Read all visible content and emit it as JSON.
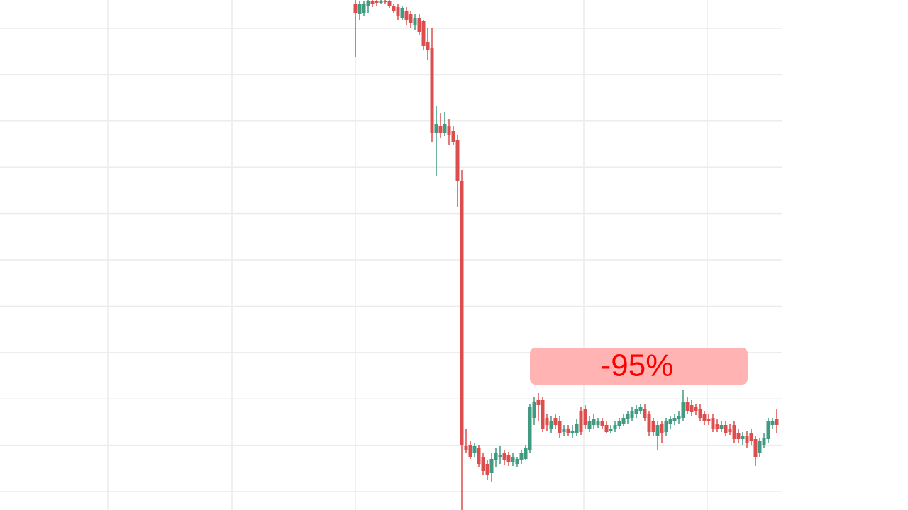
{
  "chart_data": {
    "type": "candlestick",
    "annotation": "-95%",
    "annotation_color": "#ff0000",
    "annotation_background": "#ffb3b3",
    "up_color": "#3f9a80",
    "down_color": "#dd4d4d",
    "ylim": [
      0,
      720
    ],
    "open": [
      715,
      700,
      702,
      712,
      718,
      718,
      716,
      719,
      718,
      712,
      710,
      695,
      705,
      700,
      685,
      695,
      690,
      660,
      652,
      532,
      542,
      532,
      542,
      535,
      522,
      465,
      90,
      92,
      80,
      88,
      75,
      65,
      52,
      70,
      75,
      80,
      78,
      68,
      65,
      70,
      72,
      85,
      130,
      155,
      155,
      130,
      115,
      130,
      125,
      110,
      115,
      108,
      108,
      140,
      142,
      115,
      120,
      120,
      125,
      120,
      112,
      115,
      118,
      122,
      128,
      130,
      135,
      140,
      142,
      135,
      125,
      105,
      122,
      110,
      122,
      125,
      128,
      130,
      152,
      148,
      145,
      142,
      135,
      128,
      130,
      122,
      115,
      120,
      115,
      120,
      108,
      100,
      105,
      108,
      100,
      80,
      92,
      100,
      120,
      128
    ],
    "high": [
      720,
      718,
      718,
      720,
      720,
      720,
      720,
      720,
      720,
      715,
      715,
      712,
      710,
      705,
      700,
      700,
      692,
      680,
      680,
      570,
      560,
      562,
      552,
      542,
      530,
      480,
      115,
      98,
      95,
      92,
      80,
      70,
      80,
      88,
      90,
      85,
      82,
      80,
      75,
      85,
      92,
      150,
      160,
      165,
      160,
      135,
      132,
      135,
      132,
      120,
      120,
      120,
      128,
      145,
      148,
      132,
      135,
      130,
      130,
      125,
      120,
      125,
      130,
      135,
      140,
      145,
      148,
      150,
      150,
      140,
      130,
      125,
      125,
      130,
      132,
      135,
      140,
      170,
      160,
      155,
      150,
      150,
      140,
      135,
      135,
      128,
      125,
      125,
      122,
      125,
      115,
      110,
      112,
      115,
      105,
      102,
      108,
      130,
      130,
      142
    ],
    "low": [
      640,
      692,
      698,
      702,
      710,
      712,
      714,
      715,
      708,
      702,
      692,
      692,
      685,
      680,
      678,
      670,
      650,
      635,
      520,
      472,
      525,
      528,
      515,
      515,
      428,
      0,
      80,
      72,
      75,
      60,
      50,
      42,
      40,
      60,
      65,
      64,
      62,
      62,
      60,
      65,
      70,
      80,
      120,
      125,
      110,
      112,
      108,
      115,
      102,
      105,
      104,
      102,
      104,
      106,
      115,
      110,
      115,
      116,
      114,
      108,
      108,
      110,
      114,
      118,
      122,
      125,
      130,
      135,
      125,
      105,
      105,
      85,
      95,
      105,
      115,
      120,
      122,
      125,
      135,
      132,
      134,
      125,
      120,
      120,
      110,
      110,
      110,
      105,
      106,
      95,
      95,
      92,
      88,
      92,
      62,
      75,
      88,
      95,
      115,
      108
    ],
    "close": [
      702,
      715,
      715,
      718,
      714,
      716,
      719,
      717,
      712,
      705,
      698,
      708,
      692,
      688,
      695,
      675,
      655,
      650,
      532,
      545,
      532,
      545,
      530,
      520,
      465,
      92,
      85,
      75,
      90,
      65,
      55,
      50,
      72,
      80,
      78,
      70,
      68,
      75,
      72,
      80,
      88,
      145,
      152,
      148,
      115,
      120,
      125,
      120,
      108,
      115,
      108,
      112,
      122,
      110,
      120,
      125,
      128,
      125,
      118,
      110,
      115,
      120,
      125,
      130,
      135,
      140,
      142,
      145,
      130,
      110,
      110,
      120,
      108,
      125,
      128,
      130,
      132,
      152,
      140,
      138,
      140,
      130,
      125,
      125,
      115,
      115,
      120,
      108,
      110,
      100,
      100,
      105,
      95,
      98,
      75,
      98,
      102,
      125,
      125,
      120
    ]
  }
}
